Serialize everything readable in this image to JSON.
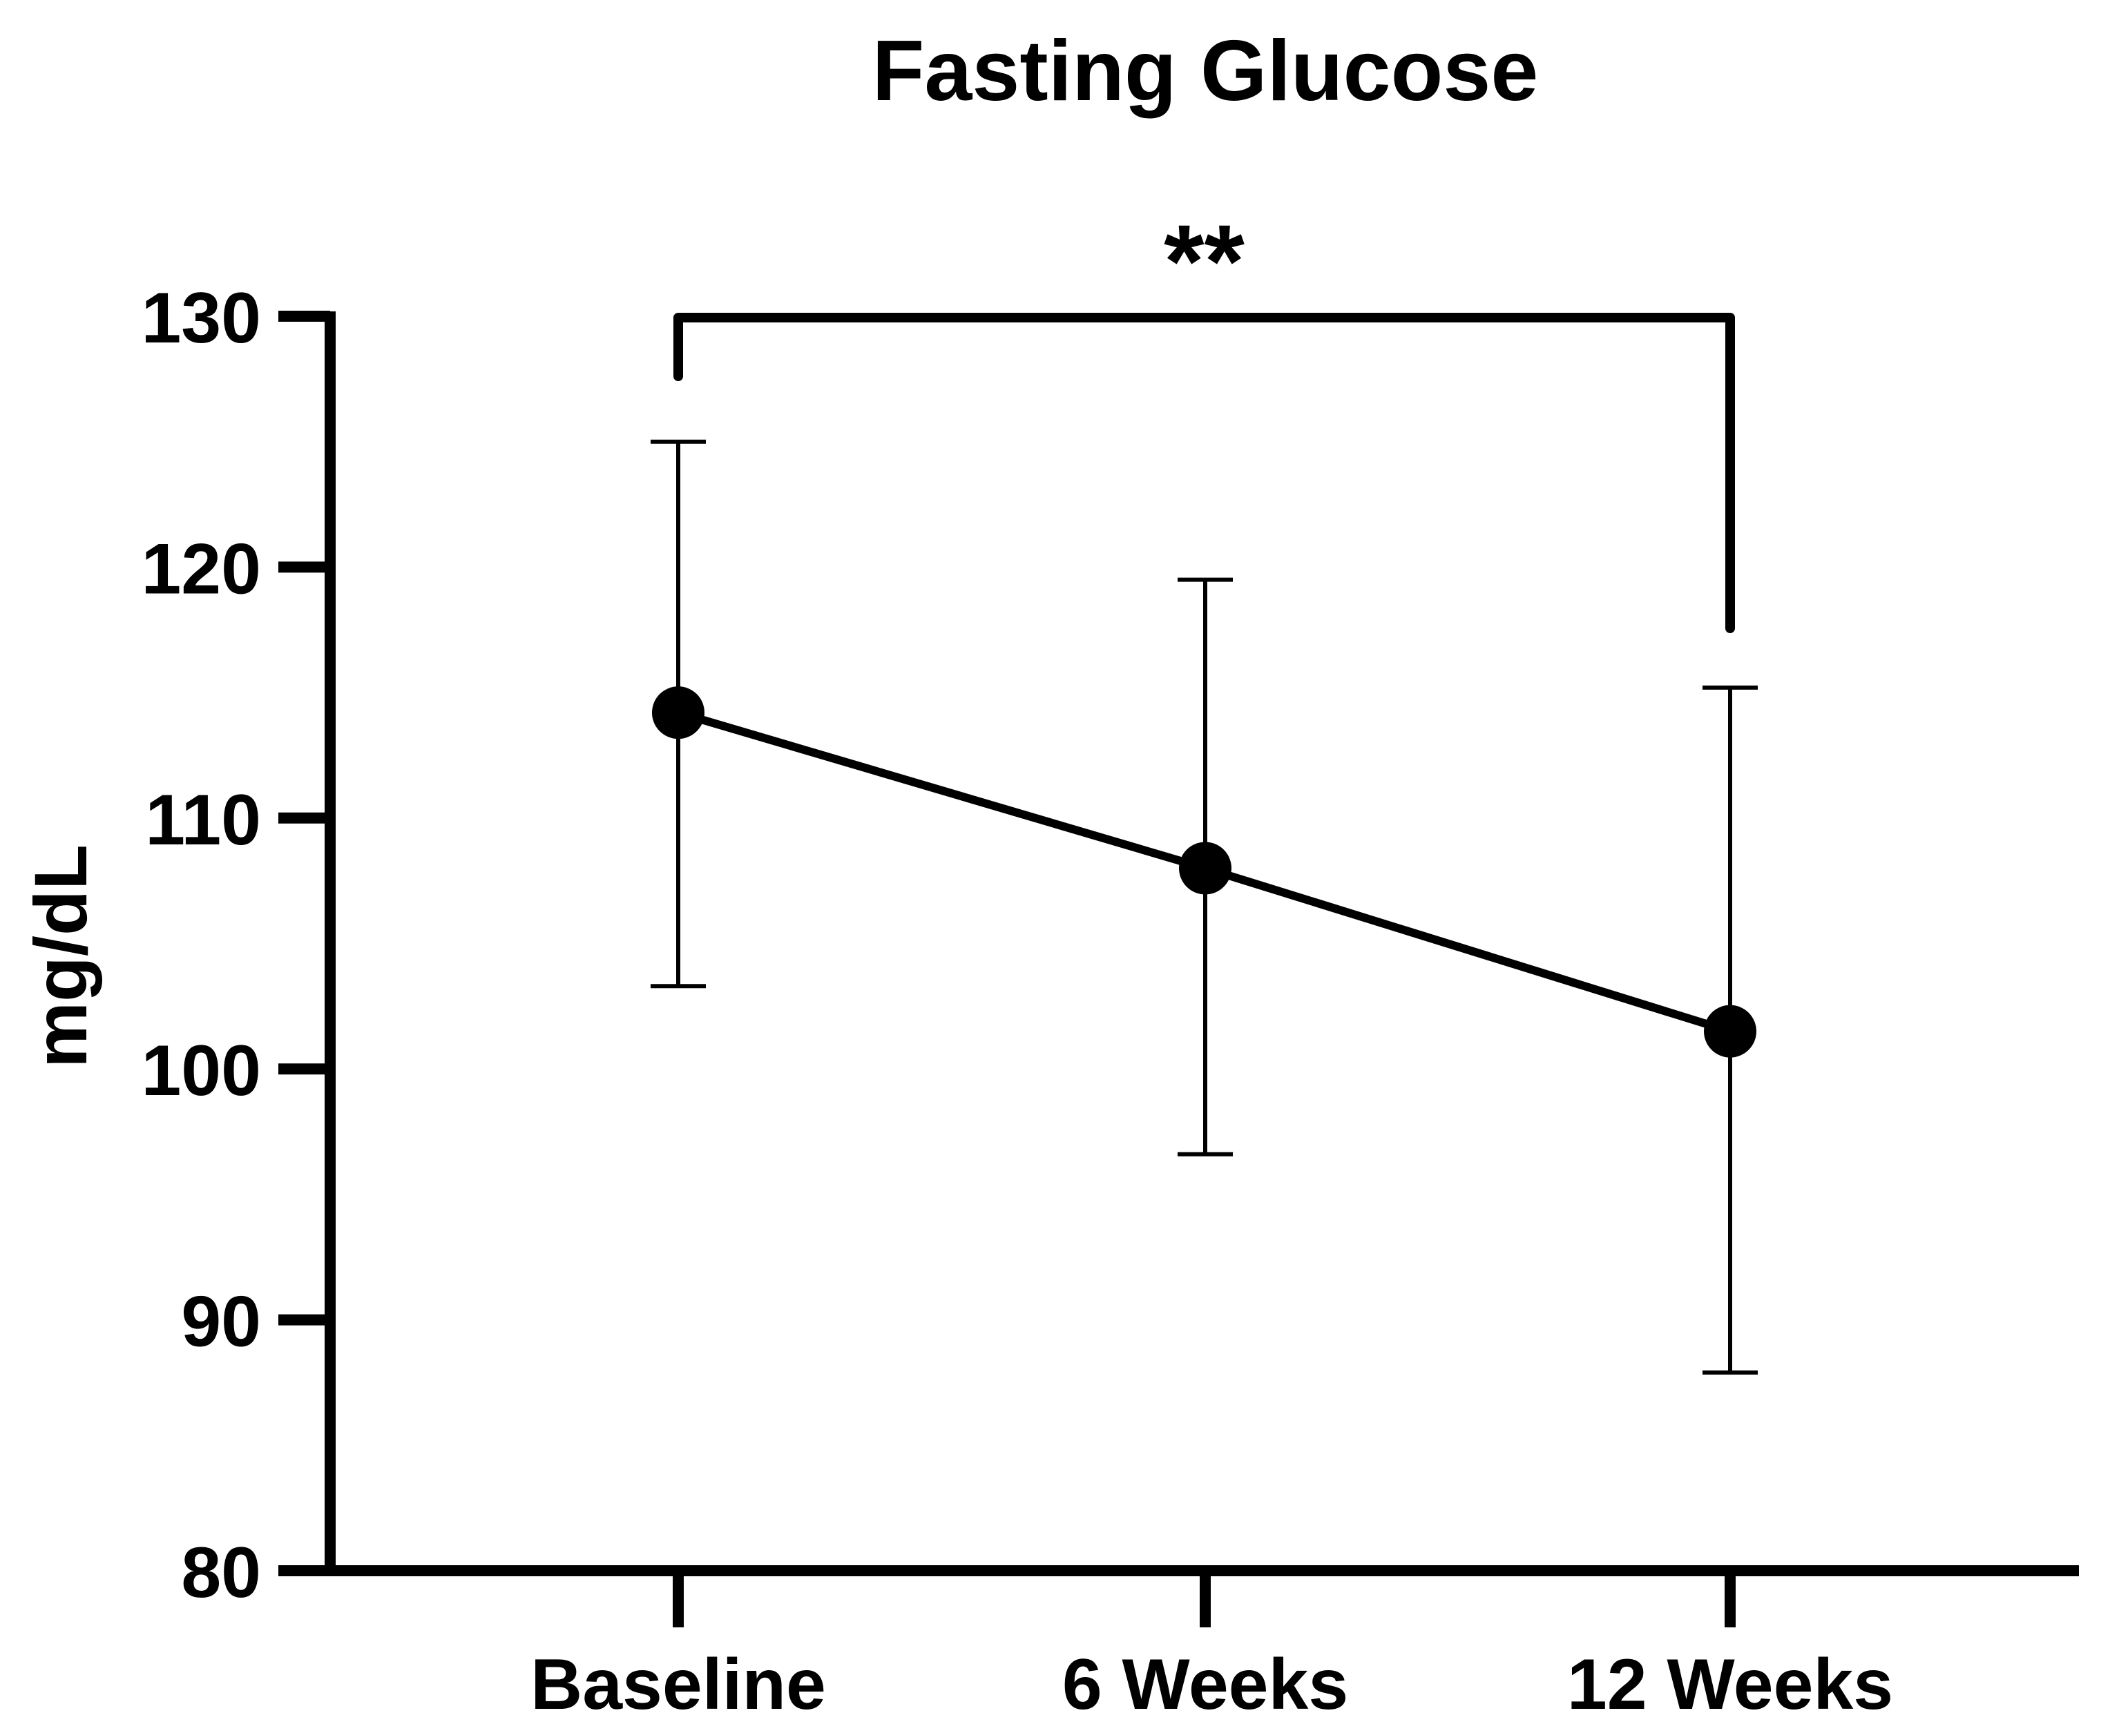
{
  "chart_data": {
    "type": "line",
    "title": "Fasting Glucose",
    "xlabel": "",
    "ylabel": "mg/dL",
    "categories": [
      "Baseline",
      "6 Weeks",
      "12 Weeks"
    ],
    "series": [
      {
        "values": [
          114.2,
          108.0,
          101.5
        ],
        "error_upper": [
          125.0,
          119.5,
          115.2
        ],
        "error_lower": [
          103.3,
          96.6,
          87.9
        ]
      }
    ],
    "ylim": [
      80,
      130
    ],
    "yticks": [
      "80",
      "90",
      "100",
      "110",
      "120",
      "130"
    ],
    "grid": false,
    "legend": "none",
    "annotations": [
      {
        "type": "significance-bracket",
        "from": "Baseline",
        "to": "12 Weeks",
        "text": "**"
      }
    ],
    "colors": {
      "line": "#000000",
      "marker": "#000000",
      "text": "#000000"
    }
  }
}
